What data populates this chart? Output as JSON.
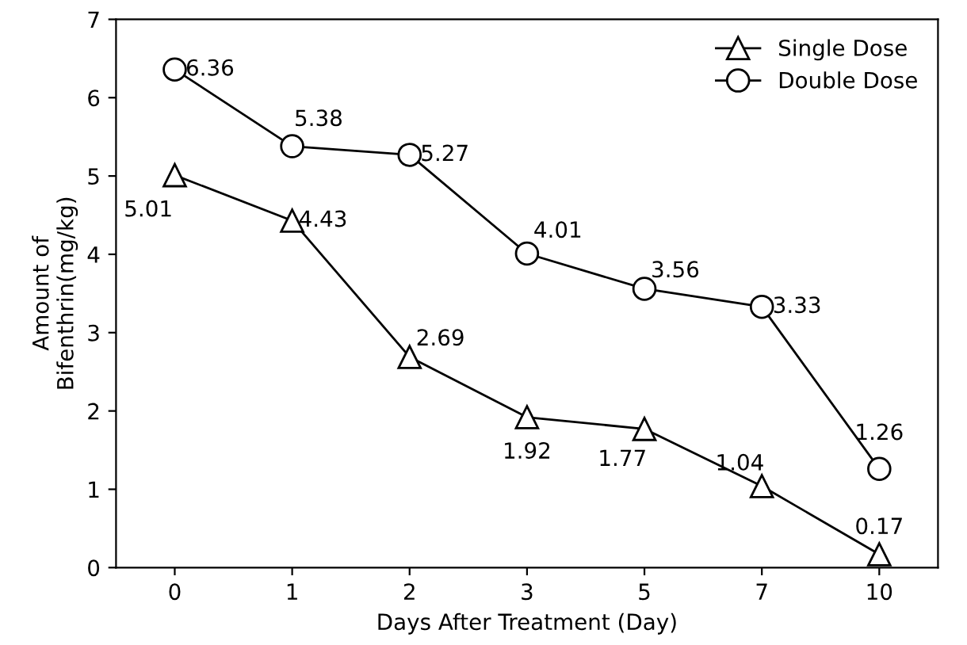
{
  "chart_data": {
    "type": "line",
    "xlabel": "Days After Treatment (Day)",
    "ylabel": "Amount of\nBifenthrin(mg/kg)",
    "categories": [
      "0",
      "1",
      "2",
      "3",
      "5",
      "7",
      "10"
    ],
    "series": [
      {
        "name": "Single Dose",
        "color": "#000000",
        "marker": "triangle",
        "values": [
          5.01,
          4.43,
          2.69,
          1.92,
          1.77,
          1.04,
          0.17
        ]
      },
      {
        "name": "Double Dose",
        "color": "#000000",
        "marker": "circle",
        "values": [
          6.36,
          5.38,
          5.27,
          4.01,
          3.56,
          3.33,
          1.26
        ]
      }
    ],
    "ylim": [
      0,
      7
    ],
    "yticks": [
      0,
      1,
      2,
      3,
      4,
      5,
      6,
      7
    ],
    "grid": false,
    "legend": "top right",
    "data_labels": true,
    "line_style": "solid"
  }
}
